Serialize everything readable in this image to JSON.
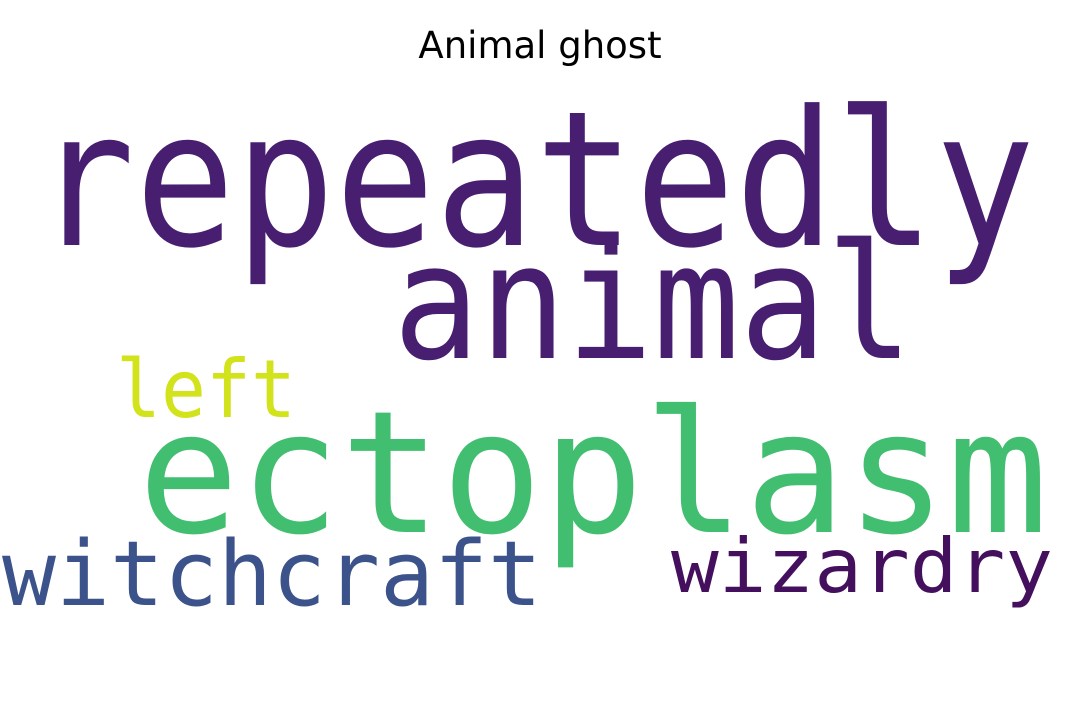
{
  "title": "Animal ghost",
  "words": [
    {
      "text": "repeatedly",
      "color": "#481f70"
    },
    {
      "text": "animal",
      "color": "#481f70"
    },
    {
      "text": "left",
      "color": "#d2e21b"
    },
    {
      "text": "ectoplasm",
      "color": "#42be71"
    },
    {
      "text": "witchcraft",
      "color": "#3b528b"
    },
    {
      "text": "wizardry",
      "color": "#440f5c"
    }
  ]
}
